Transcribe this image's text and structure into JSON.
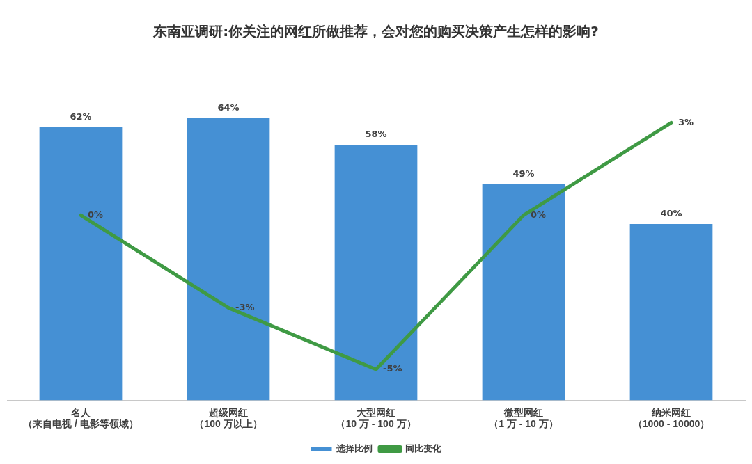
{
  "chart_data": {
    "type": "bar",
    "title": "东南亚调研:你关注的网红所做推荐，会对您的购买决策产生怎样的影响?",
    "categories": [
      "名人（来自电视 / 电影等领域）",
      "超级网红（100 万以上）",
      "大型网红（10 万 - 100 万）",
      "微型网红（1 万 - 10 万）",
      "纳米网红（1000 - 10000）"
    ],
    "tick_labels": "x",
    "grid": false,
    "legend": "bottom",
    "series": [
      {
        "name": "选择比例",
        "color": "#4590d4",
        "values": [
          62,
          64,
          58,
          49,
          40
        ],
        "value_labels": [
          "62%",
          "64%",
          "58%",
          "49%",
          "40%"
        ]
      },
      {
        "name": "同比变化",
        "type": "line",
        "axis": "y2",
        "color": "#3f9a44",
        "marker": "none",
        "values": [
          0,
          -3,
          -5,
          0,
          3
        ],
        "value_labels": [
          "0%",
          "-3%",
          "-5%",
          "0%",
          "3%"
        ]
      }
    ]
  }
}
